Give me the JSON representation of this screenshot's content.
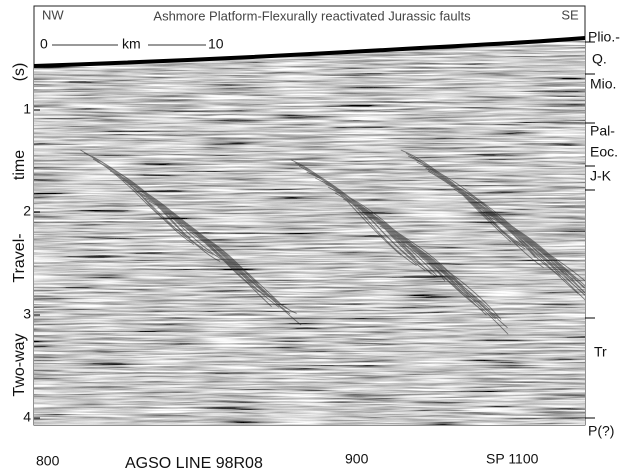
{
  "header": {
    "left": "NW",
    "title": "Ashmore Platform-Flexurally reactivated Jurassic faults",
    "right": "SE"
  },
  "scale_bar": {
    "start": "0",
    "unit": "km",
    "end": "10"
  },
  "y_axis": {
    "ticks": [
      "1",
      "2",
      "3",
      "4"
    ],
    "label_parts": [
      "(s)",
      "time",
      "Travel-",
      "Two-way"
    ]
  },
  "horizons": [
    "Plio.-",
    "Q.",
    "Mio.",
    "Pal-",
    "Eoc.",
    "J-K",
    "Tr",
    "P(?)"
  ],
  "x_axis": {
    "ticks": [
      "800",
      "900",
      "SP 1100"
    ],
    "caption": "AGSO LINE 98R08"
  }
}
